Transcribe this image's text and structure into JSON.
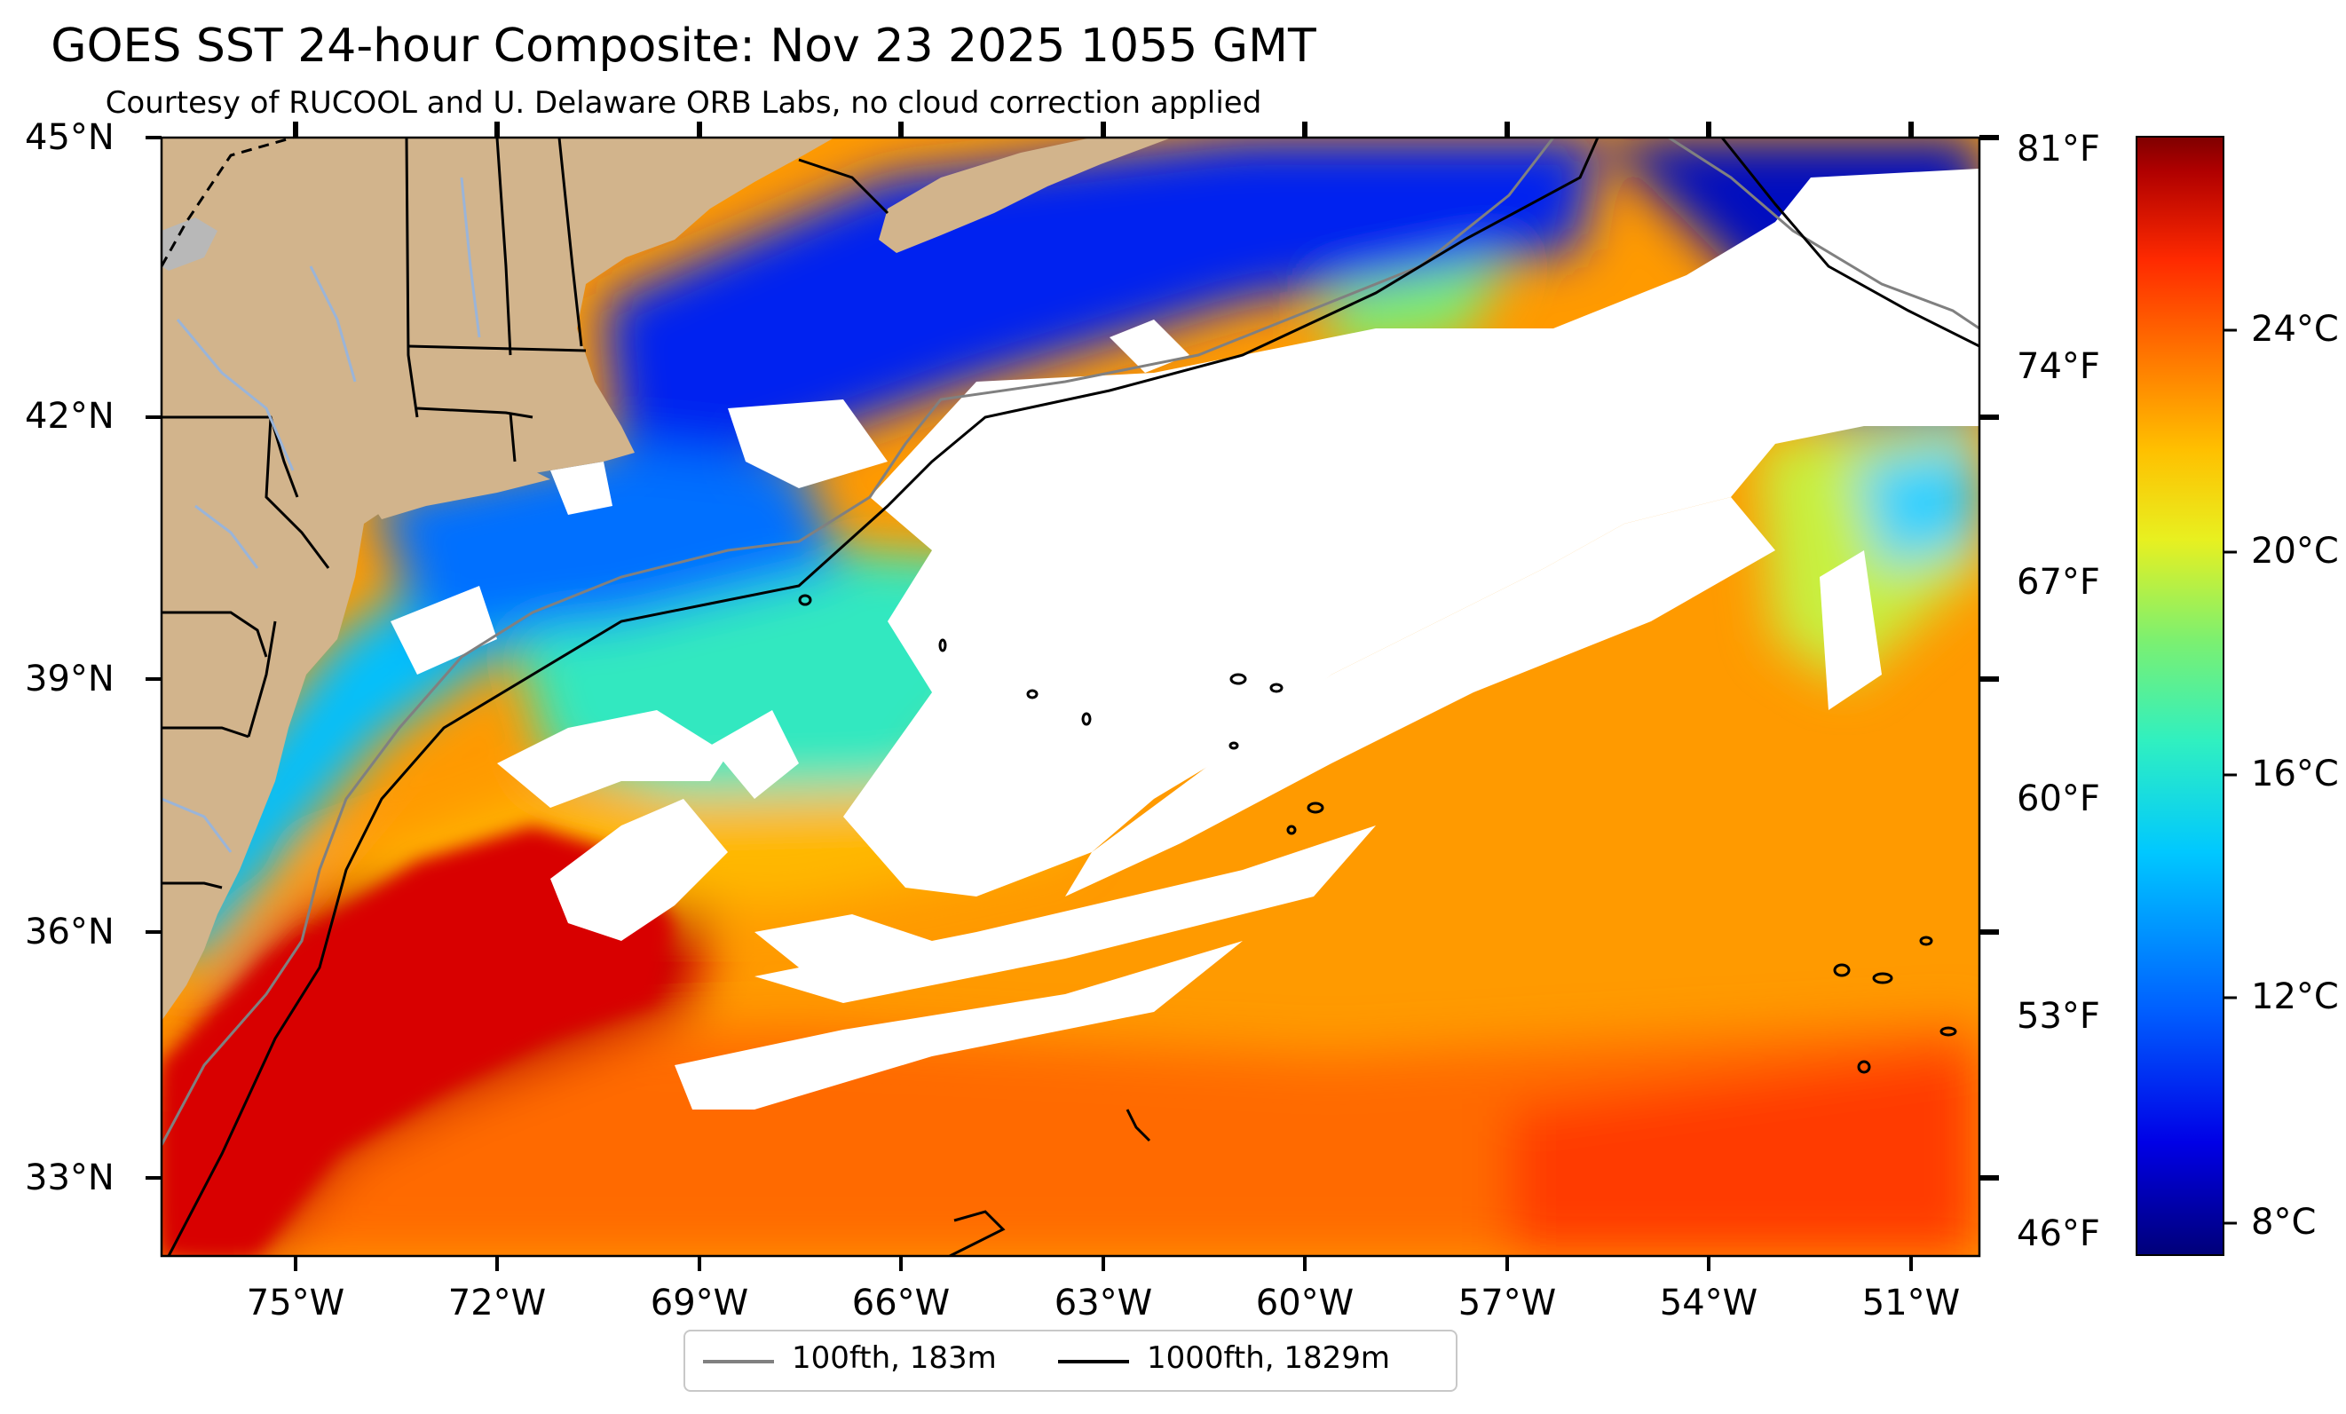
{
  "title": "GOES SST 24-hour Composite: Nov 23 2025 1055 GMT",
  "subtitle": "Courtesy of RUCOOL and U. Delaware ORB Labs, no cloud correction applied",
  "map": {
    "lon_range": [
      -78,
      -49.5
    ],
    "lat_range": [
      32,
      45
    ],
    "lat_ticks": [
      "45°N",
      "42°N",
      "39°N",
      "36°N",
      "33°N"
    ],
    "lon_ticks": [
      "75°W",
      "72°W",
      "69°W",
      "66°W",
      "63°W",
      "60°W",
      "57°W",
      "54°W",
      "51°W"
    ],
    "colors": {
      "land": "#d2b48c",
      "cloud": "#ffffff",
      "isobath_100": "#808080",
      "isobath_1000": "#000000"
    }
  },
  "colorbar": {
    "fahrenheit_ticks": [
      "81°F",
      "74°F",
      "67°F",
      "60°F",
      "53°F",
      "46°F"
    ],
    "celsius_ticks": [
      "24°C",
      "20°C",
      "16°C",
      "12°C",
      "8°C"
    ],
    "colormap": "jet"
  },
  "legend": {
    "items": [
      {
        "label": "100fth, 183m",
        "color": "#808080"
      },
      {
        "label": "1000fth, 1829m",
        "color": "#000000"
      }
    ]
  }
}
